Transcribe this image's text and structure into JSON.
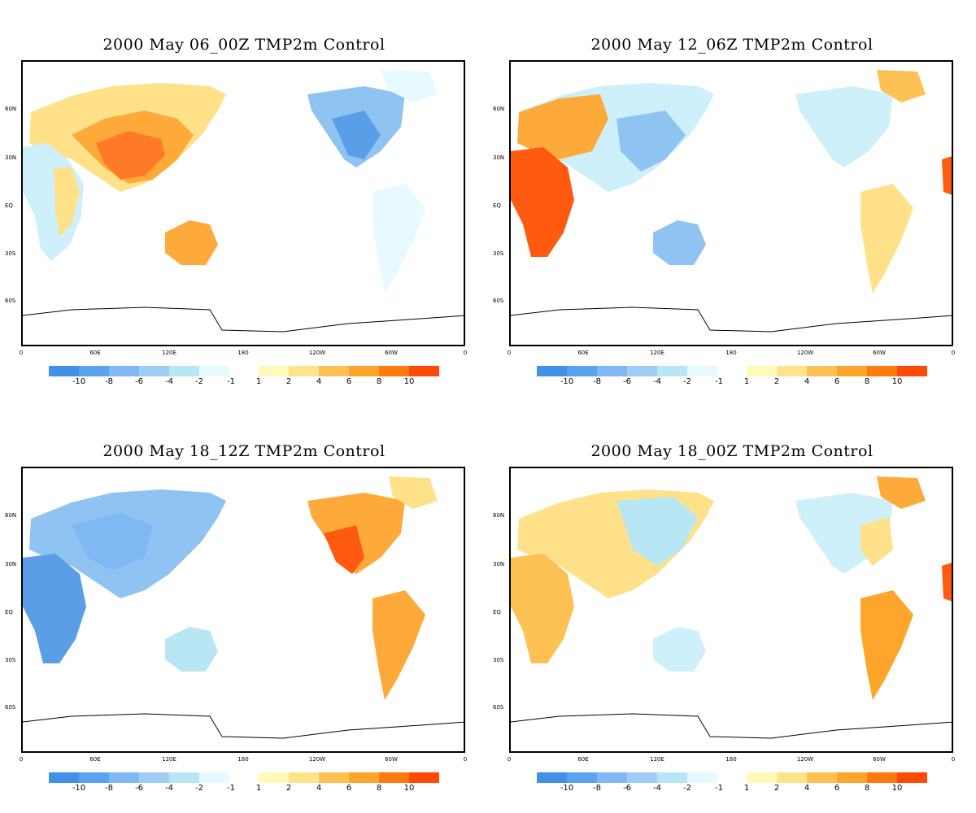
{
  "panels": [
    {
      "title": "2000 May 06_00Z TMP2m Control"
    },
    {
      "title": "2000 May 12_06Z TMP2m Control"
    },
    {
      "title": "2000 May 18_12Z TMP2m Control"
    },
    {
      "title": "2000 May 18_00Z TMP2m Control"
    }
  ],
  "lat_labels": [
    "60N",
    "30N",
    "EQ",
    "30S",
    "60S"
  ],
  "lon_labels": [
    "0",
    "60E",
    "120E",
    "180",
    "120W",
    "60W",
    "0"
  ],
  "legend": {
    "negative_ticks": [
      "-10",
      "-8",
      "-6",
      "-4",
      "-2",
      "-1"
    ],
    "positive_ticks": [
      "1",
      "2",
      "4",
      "6",
      "8",
      "10"
    ],
    "negative_colors": [
      "#4191e8",
      "#5ba3ef",
      "#7fb8f2",
      "#9fcdf5",
      "#b8e6f5",
      "#e6faff"
    ],
    "positive_colors": [
      "#fffaba",
      "#fee38d",
      "#fdc253",
      "#fea62b",
      "#ff7a0e",
      "#ff4a05"
    ]
  },
  "colors": {
    "warm_strong": "#ff5a10",
    "warm_mid": "#fdaa3a",
    "warm_light": "#ffe189",
    "cold_strong": "#5a9ee8",
    "cold_mid": "#8fc3f2",
    "cold_light": "#cdf0fa"
  }
}
